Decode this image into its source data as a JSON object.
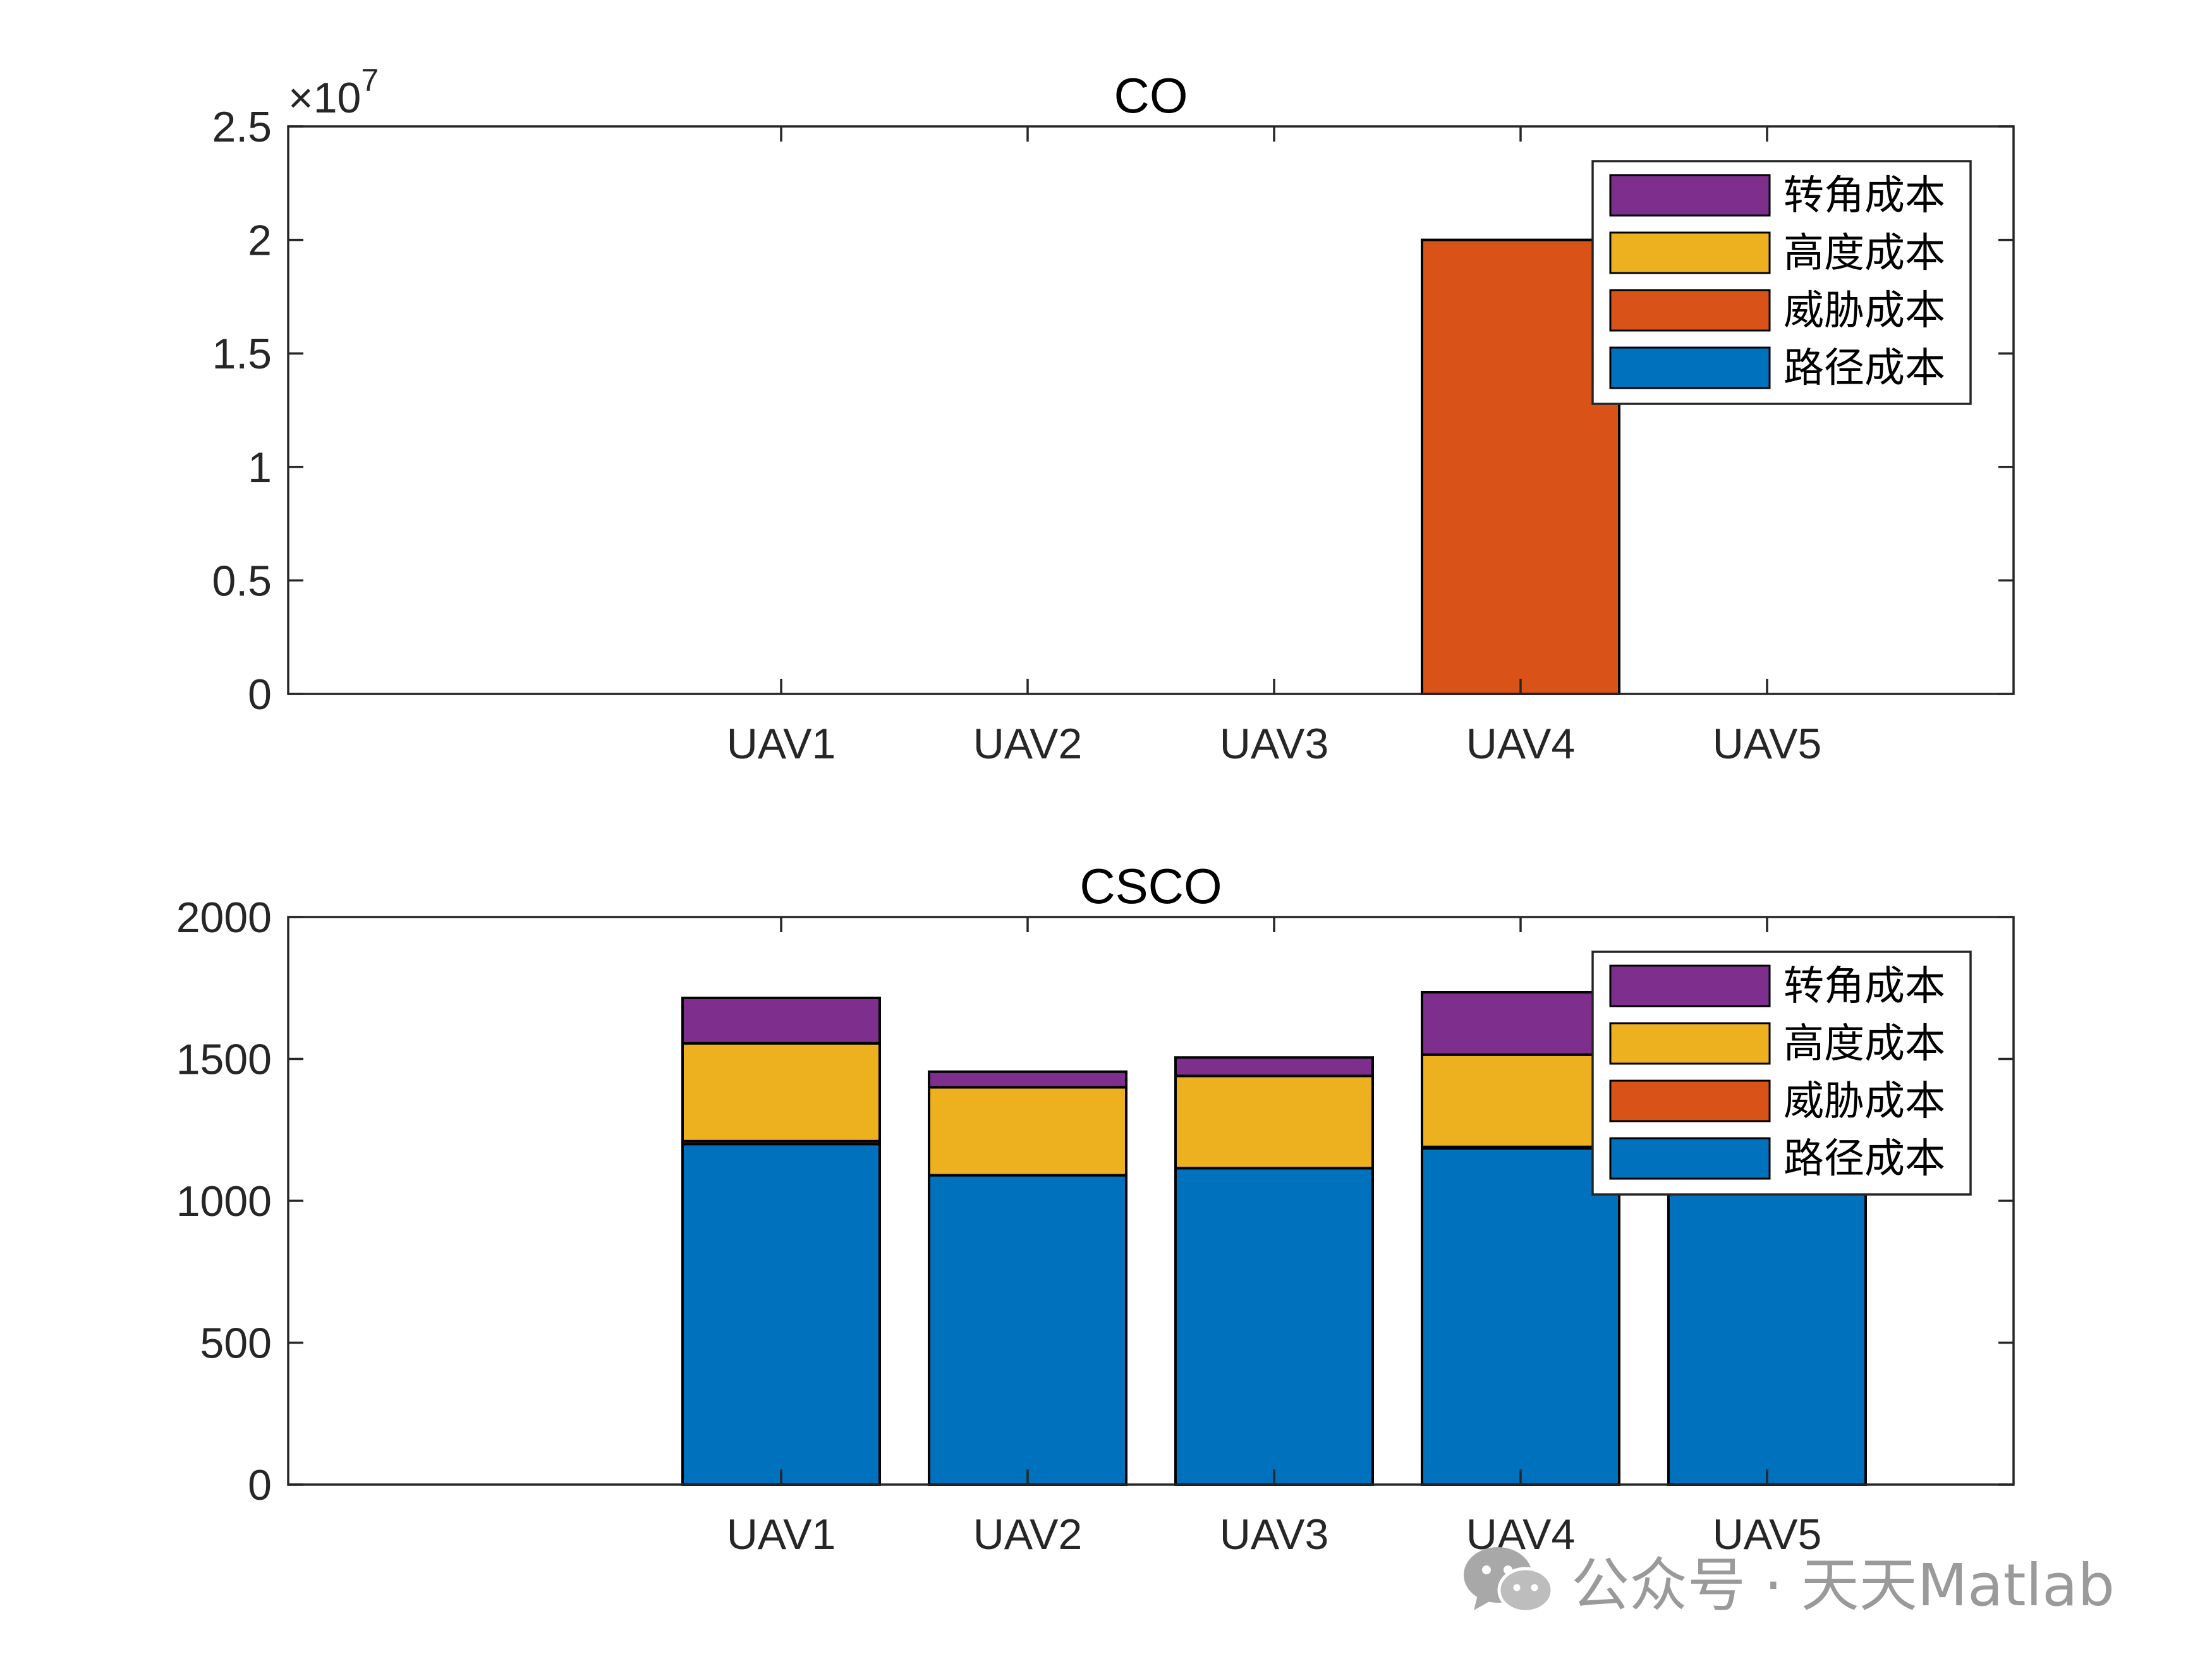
{
  "chart_data": [
    {
      "type": "bar",
      "stacked": true,
      "title": "CO",
      "categories": [
        "UAV1",
        "UAV2",
        "UAV3",
        "UAV4",
        "UAV5"
      ],
      "ylim": [
        0,
        2.5
      ],
      "yticks": [
        0,
        0.5,
        1,
        1.5,
        2,
        2.5
      ],
      "ytick_labels": [
        "0",
        "0.5",
        "1",
        "1.5",
        "2",
        "2.5"
      ],
      "y_exponent": "×10^7",
      "legend_position": "top-right",
      "series": [
        {
          "name": "路径成本",
          "color": "#0072BD",
          "values": [
            0,
            0,
            0,
            0,
            0
          ]
        },
        {
          "name": "威胁成本",
          "color": "#D95319",
          "values": [
            0,
            0,
            0,
            2.0,
            0
          ]
        },
        {
          "name": "高度成本",
          "color": "#EDB120",
          "values": [
            0,
            0,
            0,
            0,
            0
          ]
        },
        {
          "name": "转角成本",
          "color": "#7E2F8E",
          "values": [
            0,
            0,
            0,
            0,
            0
          ]
        }
      ]
    },
    {
      "type": "bar",
      "stacked": true,
      "title": "CSCO",
      "categories": [
        "UAV1",
        "UAV2",
        "UAV3",
        "UAV4",
        "UAV5"
      ],
      "ylim": [
        0,
        2000
      ],
      "yticks": [
        0,
        500,
        1000,
        1500,
        2000
      ],
      "ytick_labels": [
        "0",
        "500",
        "1000",
        "1500",
        "2000"
      ],
      "legend_position": "top-right",
      "series": [
        {
          "name": "路径成本",
          "color": "#0072BD",
          "values": [
            1200,
            1090,
            1115,
            1185,
            1160
          ]
        },
        {
          "name": "威胁成本",
          "color": "#D95319",
          "values": [
            10,
            0,
            0,
            5,
            15
          ]
        },
        {
          "name": "高度成本",
          "color": "#EDB120",
          "values": [
            345,
            310,
            325,
            325,
            320
          ]
        },
        {
          "name": "转角成本",
          "color": "#7E2F8E",
          "values": [
            160,
            55,
            65,
            220,
            50
          ]
        }
      ]
    }
  ],
  "watermark": {
    "text": "公众号 · 天天Matlab",
    "icon": "wechat-icon"
  }
}
